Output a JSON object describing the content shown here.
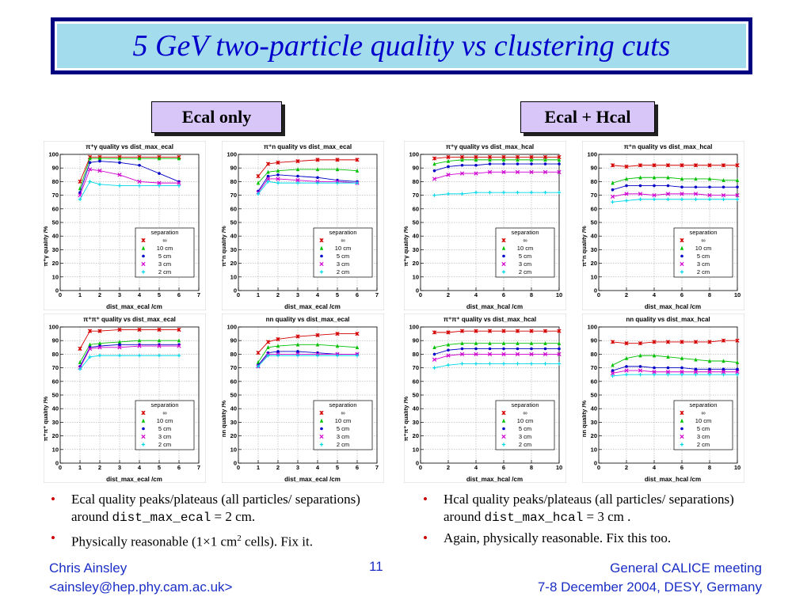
{
  "slide": {
    "title": "5 GeV  two-particle quality vs clustering cuts",
    "section_left": "Ecal only",
    "section_right": "Ecal + Hcal",
    "bullets_left": [
      {
        "pre": "Ecal quality peaks/plateaus (all particles/ separations) around ",
        "code": "dist_max_ecal",
        "post": " = 2 cm."
      },
      {
        "pre": "Physically reasonable (1×1 cm",
        "sup": "2",
        "post": " cells). Fix it."
      }
    ],
    "bullets_right": [
      {
        "pre": "Hcal quality peaks/plateaus (all particles/ separations) around ",
        "code": "dist_max_hcal",
        "post": " = 3 cm ."
      },
      {
        "pre": "Again, physically reasonable. Fix this too."
      }
    ],
    "footer_left_1": "Chris Ainsley",
    "footer_left_2": "<ainsley@hep.phy.cam.ac.uk>",
    "page_number": "11",
    "footer_right_1": "General CALICE meeting",
    "footer_right_2": "7-8 December 2004, DESY, Germany"
  },
  "colors": {
    "series": [
      "#d40000",
      "#00c000",
      "#0000c8",
      "#d000d0",
      "#00d8e8"
    ]
  },
  "chart_data": [
    {
      "type": "line",
      "title": "π⁺γ quality vs dist_max_ecal",
      "xlabel": "dist_max_ecal /cm",
      "ylabel": "π⁺γ quality /%",
      "xlim": [
        0,
        7
      ],
      "ylim": [
        0,
        100
      ],
      "xticks": [
        0,
        1,
        2,
        3,
        4,
        5,
        6,
        7
      ],
      "yticks": [
        0,
        10,
        20,
        30,
        40,
        50,
        60,
        70,
        80,
        90,
        100
      ],
      "x": [
        1,
        1.5,
        2,
        3,
        4,
        5,
        6
      ],
      "legend_title": "separation",
      "series": [
        {
          "name": "∞",
          "values": [
            80,
            98,
            98,
            98,
            98,
            98,
            98
          ]
        },
        {
          "name": "10 cm",
          "values": [
            75,
            97,
            97,
            97,
            97,
            97,
            97
          ]
        },
        {
          "name": "5 cm",
          "values": [
            72,
            94,
            95,
            94,
            92,
            86,
            80
          ]
        },
        {
          "name": "3 cm",
          "values": [
            70,
            89,
            88,
            85,
            80,
            79,
            79
          ]
        },
        {
          "name": "2 cm",
          "values": [
            67,
            80,
            78,
            77,
            77,
            77,
            77
          ]
        }
      ]
    },
    {
      "type": "line",
      "title": "π⁺n quality vs dist_max_ecal",
      "xlabel": "dist_max_ecal /cm",
      "ylabel": "π⁺n quality /%",
      "xlim": [
        0,
        7
      ],
      "ylim": [
        0,
        100
      ],
      "xticks": [
        0,
        1,
        2,
        3,
        4,
        5,
        6,
        7
      ],
      "yticks": [
        0,
        10,
        20,
        30,
        40,
        50,
        60,
        70,
        80,
        90,
        100
      ],
      "x": [
        1,
        1.5,
        2,
        3,
        4,
        5,
        6
      ],
      "legend_title": "separation",
      "series": [
        {
          "name": "∞",
          "values": [
            84,
            93,
            94,
            95,
            96,
            96,
            96
          ]
        },
        {
          "name": "10 cm",
          "values": [
            79,
            87,
            88,
            89,
            89,
            89,
            88
          ]
        },
        {
          "name": "5 cm",
          "values": [
            73,
            84,
            85,
            84,
            83,
            81,
            80
          ]
        },
        {
          "name": "3 cm",
          "values": [
            72,
            82,
            82,
            81,
            80,
            80,
            79
          ]
        },
        {
          "name": "2 cm",
          "values": [
            71,
            80,
            79,
            79,
            79,
            79,
            79
          ]
        }
      ]
    },
    {
      "type": "line",
      "title": "π⁺γ quality vs dist_max_hcal",
      "xlabel": "dist_max_hcal /cm",
      "ylabel": "π⁺γ quality /%",
      "xlim": [
        0,
        10
      ],
      "ylim": [
        0,
        100
      ],
      "xticks": [
        0,
        2,
        4,
        6,
        8,
        10
      ],
      "yticks": [
        0,
        10,
        20,
        30,
        40,
        50,
        60,
        70,
        80,
        90,
        100
      ],
      "x": [
        1,
        2,
        3,
        4,
        5,
        6,
        7,
        8,
        9,
        10
      ],
      "legend_title": "separation",
      "series": [
        {
          "name": "∞",
          "values": [
            97,
            98,
            98,
            98,
            98,
            98,
            98,
            98,
            98,
            98
          ]
        },
        {
          "name": "10 cm",
          "values": [
            93,
            95,
            96,
            96,
            96,
            96,
            96,
            96,
            96,
            96
          ]
        },
        {
          "name": "5 cm",
          "values": [
            88,
            91,
            92,
            92,
            93,
            93,
            93,
            93,
            93,
            93
          ]
        },
        {
          "name": "3 cm",
          "values": [
            82,
            85,
            86,
            86,
            87,
            87,
            87,
            87,
            87,
            87
          ]
        },
        {
          "name": "2 cm",
          "values": [
            70,
            71,
            71,
            72,
            72,
            72,
            72,
            72,
            72,
            72
          ]
        }
      ]
    },
    {
      "type": "line",
      "title": "π⁺n quality vs dist_max_hcal",
      "xlabel": "dist_max_hcal /cm",
      "ylabel": "π⁺n quality /%",
      "xlim": [
        0,
        10
      ],
      "ylim": [
        0,
        100
      ],
      "xticks": [
        0,
        2,
        4,
        6,
        8,
        10
      ],
      "yticks": [
        0,
        10,
        20,
        30,
        40,
        50,
        60,
        70,
        80,
        90,
        100
      ],
      "x": [
        1,
        2,
        3,
        4,
        5,
        6,
        7,
        8,
        9,
        10
      ],
      "legend_title": "separation",
      "series": [
        {
          "name": "∞",
          "values": [
            92,
            91,
            92,
            92,
            92,
            92,
            92,
            92,
            92,
            92
          ]
        },
        {
          "name": "10 cm",
          "values": [
            79,
            82,
            83,
            83,
            83,
            82,
            82,
            82,
            81,
            81
          ]
        },
        {
          "name": "5 cm",
          "values": [
            74,
            77,
            77,
            77,
            77,
            76,
            76,
            76,
            76,
            76
          ]
        },
        {
          "name": "3 cm",
          "values": [
            69,
            71,
            71,
            70,
            71,
            71,
            71,
            70,
            70,
            70
          ]
        },
        {
          "name": "2 cm",
          "values": [
            65,
            66,
            67,
            67,
            67,
            67,
            67,
            67,
            67,
            67
          ]
        }
      ]
    },
    {
      "type": "line",
      "title": "π⁺π⁺ quality vs dist_max_ecal",
      "xlabel": "dist_max_ecal /cm",
      "ylabel": "π⁺π⁺ quality /%",
      "xlim": [
        0,
        7
      ],
      "ylim": [
        0,
        100
      ],
      "xticks": [
        0,
        1,
        2,
        3,
        4,
        5,
        6,
        7
      ],
      "yticks": [
        0,
        10,
        20,
        30,
        40,
        50,
        60,
        70,
        80,
        90,
        100
      ],
      "x": [
        1,
        1.5,
        2,
        3,
        4,
        5,
        6
      ],
      "legend_title": "separation",
      "series": [
        {
          "name": "∞",
          "values": [
            84,
            97,
            97,
            98,
            98,
            98,
            98
          ]
        },
        {
          "name": "10 cm",
          "values": [
            74,
            87,
            88,
            89,
            90,
            90,
            90
          ]
        },
        {
          "name": "5 cm",
          "values": [
            71,
            85,
            86,
            87,
            87,
            87,
            87
          ]
        },
        {
          "name": "3 cm",
          "values": [
            70,
            84,
            85,
            85,
            86,
            86,
            86
          ]
        },
        {
          "name": "2 cm",
          "values": [
            69,
            78,
            79,
            79,
            79,
            79,
            79
          ]
        }
      ]
    },
    {
      "type": "line",
      "title": "nn quality vs dist_max_ecal",
      "xlabel": "dist_max_ecal /cm",
      "ylabel": "nn quality /%",
      "xlim": [
        0,
        7
      ],
      "ylim": [
        0,
        100
      ],
      "xticks": [
        0,
        1,
        2,
        3,
        4,
        5,
        6,
        7
      ],
      "yticks": [
        0,
        10,
        20,
        30,
        40,
        50,
        60,
        70,
        80,
        90,
        100
      ],
      "x": [
        1,
        1.5,
        2,
        3,
        4,
        5,
        6
      ],
      "legend_title": "separation",
      "series": [
        {
          "name": "∞",
          "values": [
            81,
            89,
            91,
            93,
            94,
            95,
            95
          ]
        },
        {
          "name": "10 cm",
          "values": [
            74,
            85,
            86,
            87,
            87,
            86,
            85
          ]
        },
        {
          "name": "5 cm",
          "values": [
            72,
            81,
            82,
            82,
            81,
            80,
            80
          ]
        },
        {
          "name": "3 cm",
          "values": [
            71,
            80,
            80,
            80,
            80,
            80,
            80
          ]
        },
        {
          "name": "2 cm",
          "values": [
            71,
            79,
            79,
            79,
            79,
            79,
            79
          ]
        }
      ]
    },
    {
      "type": "line",
      "title": "π⁺π⁺ quality vs dist_max_hcal",
      "xlabel": "dist_max_hcal /cm",
      "ylabel": "π⁺π⁺ quality /%",
      "xlim": [
        0,
        10
      ],
      "ylim": [
        0,
        100
      ],
      "xticks": [
        0,
        2,
        4,
        6,
        8,
        10
      ],
      "yticks": [
        0,
        10,
        20,
        30,
        40,
        50,
        60,
        70,
        80,
        90,
        100
      ],
      "x": [
        1,
        2,
        3,
        4,
        5,
        6,
        7,
        8,
        9,
        10
      ],
      "legend_title": "separation",
      "series": [
        {
          "name": "∞",
          "values": [
            96,
            96,
            97,
            97,
            97,
            97,
            97,
            97,
            97,
            97
          ]
        },
        {
          "name": "10 cm",
          "values": [
            85,
            87,
            88,
            88,
            88,
            88,
            88,
            88,
            88,
            88
          ]
        },
        {
          "name": "5 cm",
          "values": [
            80,
            83,
            84,
            84,
            84,
            84,
            84,
            84,
            84,
            84
          ]
        },
        {
          "name": "3 cm",
          "values": [
            76,
            79,
            80,
            80,
            80,
            80,
            80,
            80,
            80,
            80
          ]
        },
        {
          "name": "2 cm",
          "values": [
            70,
            72,
            73,
            73,
            73,
            73,
            73,
            73,
            73,
            73
          ]
        }
      ]
    },
    {
      "type": "line",
      "title": "nn quality vs dist_max_hcal",
      "xlabel": "dist_max_hcal /cm",
      "ylabel": "nn quality /%",
      "xlim": [
        0,
        10
      ],
      "ylim": [
        0,
        100
      ],
      "xticks": [
        0,
        2,
        4,
        6,
        8,
        10
      ],
      "yticks": [
        0,
        10,
        20,
        30,
        40,
        50,
        60,
        70,
        80,
        90,
        100
      ],
      "x": [
        1,
        2,
        3,
        4,
        5,
        6,
        7,
        8,
        9,
        10
      ],
      "legend_title": "separation",
      "series": [
        {
          "name": "∞",
          "values": [
            89,
            88,
            88,
            89,
            89,
            89,
            89,
            89,
            90,
            90
          ]
        },
        {
          "name": "10 cm",
          "values": [
            72,
            77,
            79,
            79,
            78,
            77,
            76,
            75,
            75,
            74
          ]
        },
        {
          "name": "5 cm",
          "values": [
            68,
            71,
            71,
            70,
            70,
            70,
            69,
            69,
            69,
            69
          ]
        },
        {
          "name": "3 cm",
          "values": [
            66,
            68,
            68,
            67,
            67,
            67,
            67,
            67,
            67,
            67
          ]
        },
        {
          "name": "2 cm",
          "values": [
            64,
            65,
            65,
            65,
            65,
            65,
            65,
            65,
            65,
            65
          ]
        }
      ]
    }
  ]
}
